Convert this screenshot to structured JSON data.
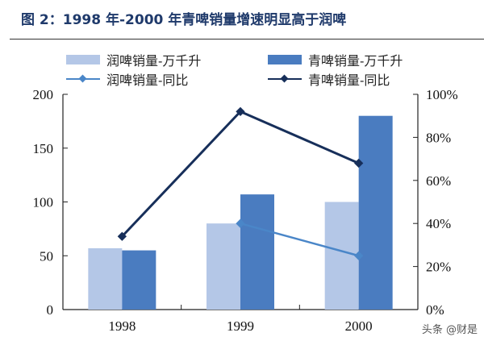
{
  "title": "图 2：1998 年-2000 年青啤销量增速明显高于润啤",
  "watermark": "头条 @财是",
  "colors": {
    "light_bar": "#b4c7e7",
    "dark_bar": "#4a7cc0",
    "light_line": "#4a86c8",
    "dark_line": "#172f5a"
  },
  "chart_data": {
    "type": "bar+line",
    "title": "图 2：1998 年-2000 年青啤销量增速明显高于润啤",
    "categories": [
      "1998",
      "1999",
      "2000"
    ],
    "series": [
      {
        "name": "润啤销量-万千升",
        "kind": "bar",
        "axis": "left",
        "values": [
          57,
          80,
          100
        ]
      },
      {
        "name": "青啤销量-万千升",
        "kind": "bar",
        "axis": "left",
        "values": [
          55,
          107,
          180
        ]
      },
      {
        "name": "润啤销量-同比",
        "kind": "line",
        "axis": "right",
        "values": [
          null,
          40,
          25
        ]
      },
      {
        "name": "青啤销量-同比",
        "kind": "line",
        "axis": "right",
        "values": [
          34,
          92,
          68
        ]
      }
    ],
    "ylim_left": [
      0,
      200
    ],
    "yticks_left": [
      "0",
      "50",
      "100",
      "150",
      "200"
    ],
    "ylim_right": [
      0,
      100
    ],
    "yticks_right": [
      "0%",
      "20%",
      "40%",
      "60%",
      "80%",
      "100%"
    ],
    "legend": "top",
    "grid": false
  }
}
